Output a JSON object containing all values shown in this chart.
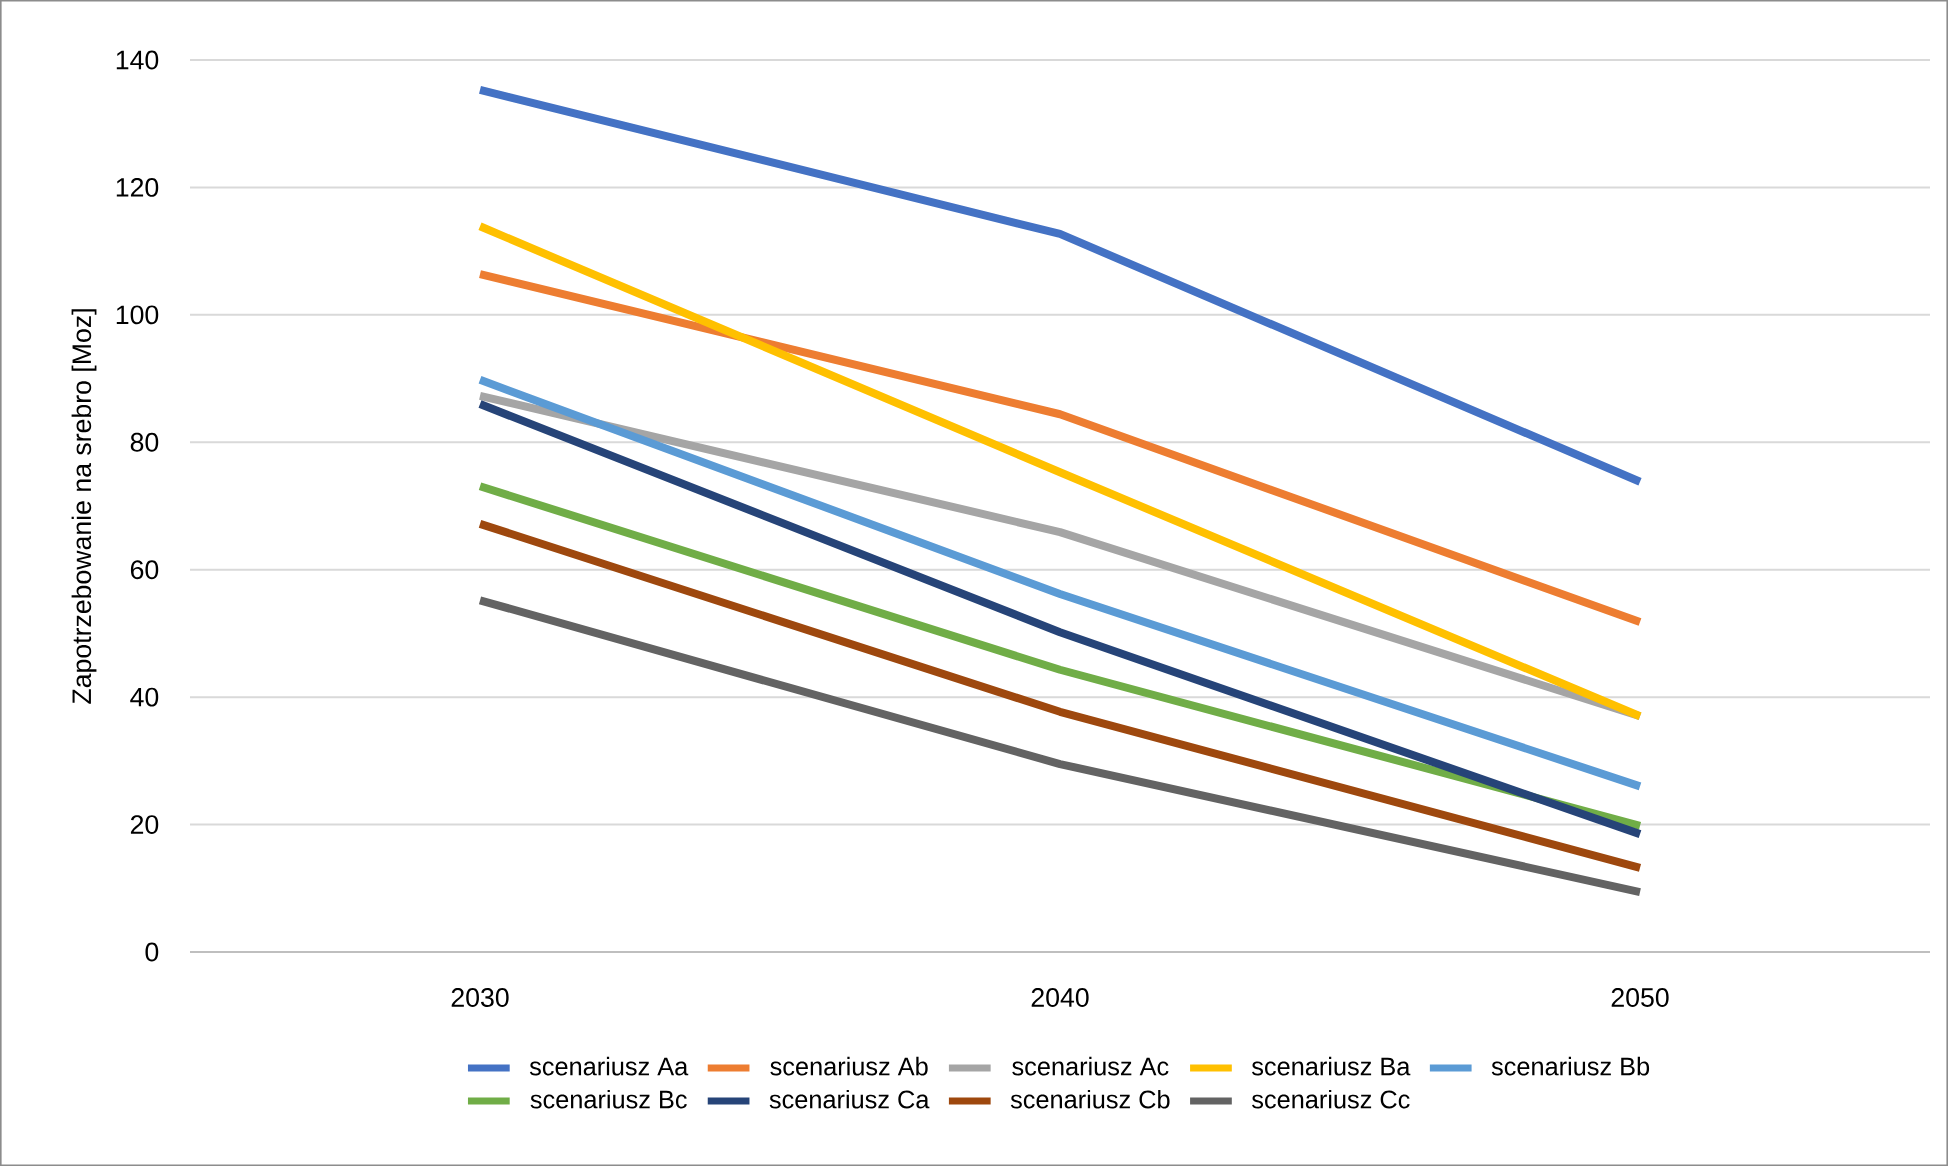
{
  "chart_data": {
    "type": "line",
    "ylabel": "Zapotrzebowanie na srebro [Moz]",
    "categories": [
      "2030",
      "2040",
      "2050"
    ],
    "ylim": [
      0,
      140
    ],
    "yticks": [
      0,
      20,
      40,
      60,
      80,
      100,
      120,
      140
    ],
    "grid": "y",
    "legend": "bottom",
    "marker": "none",
    "line_style": "solid",
    "series": [
      {
        "name": "scenariusz Aa",
        "color": "#4472c4",
        "values": [
          135.3,
          112.7,
          73.8
        ]
      },
      {
        "name": "scenariusz Ab",
        "color": "#ed7d31",
        "values": [
          106.4,
          84.4,
          51.8
        ]
      },
      {
        "name": "scenariusz Ac",
        "color": "#a5a5a5",
        "values": [
          87.3,
          65.9,
          37
        ]
      },
      {
        "name": "scenariusz Ba",
        "color": "#ffc000",
        "values": [
          113.9,
          75.3,
          37
        ]
      },
      {
        "name": "scenariusz Bb",
        "color": "#5b9bd5",
        "values": [
          89.8,
          56.2,
          26
        ]
      },
      {
        "name": "scenariusz Bc",
        "color": "#70ad47",
        "values": [
          73.1,
          44.3,
          19.8
        ]
      },
      {
        "name": "scenariusz Ca",
        "color": "#264478",
        "values": [
          86,
          50.2,
          18.5
        ]
      },
      {
        "name": "scenariusz Cb",
        "color": "#9e480e",
        "values": [
          67.2,
          37.7,
          13.2
        ]
      },
      {
        "name": "scenariusz Cc",
        "color": "#636363",
        "values": [
          55.2,
          29.5,
          9.4
        ]
      }
    ]
  }
}
